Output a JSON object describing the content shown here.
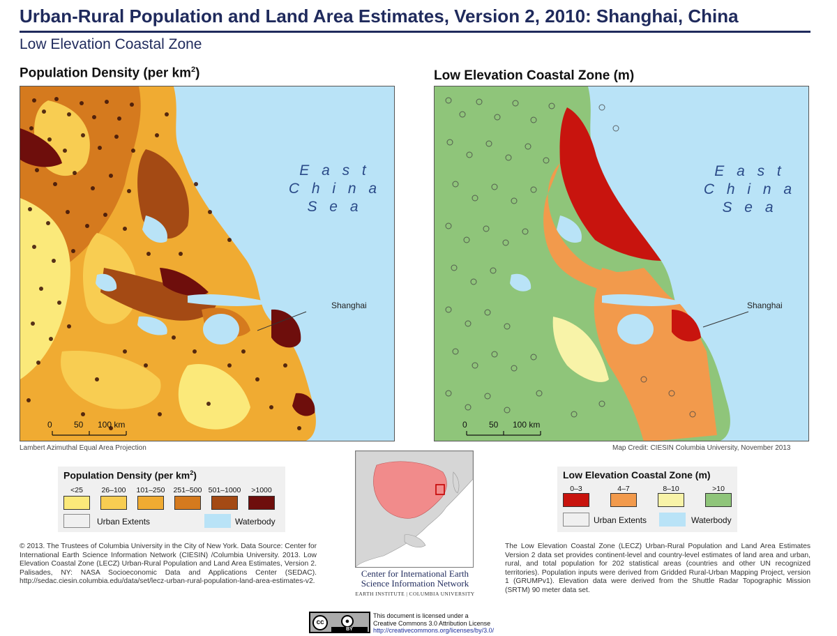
{
  "header": {
    "title": "Urban-Rural Population and Land Area Estimates, Version 2, 2010: Shanghai, China",
    "subtitle": "Low Elevation Coastal Zone"
  },
  "left_map": {
    "title": "Population Density (per km",
    "title_sup": "2",
    "title_close": ")",
    "sea_label": [
      "E a s t",
      "C h i n a",
      "S e a"
    ],
    "city_label": "Shanghai",
    "scale_ticks": [
      "0",
      "50",
      "100 km"
    ],
    "projection_note": "Lambert Azimuthal Equal Area Projection"
  },
  "right_map": {
    "title": "Low Elevation Coastal Zone (m)",
    "sea_label": [
      "E a s t",
      "C h i n a",
      "S e a"
    ],
    "city_label": "Shanghai",
    "scale_ticks": [
      "0",
      "50",
      "100 km"
    ],
    "credit": "Map Credit: CIESIN Columbia University, November 2013"
  },
  "legend_density": {
    "title": "Population Density (per km",
    "title_sup": "2",
    "title_close": ")",
    "classes": [
      {
        "label": "<25",
        "color": "#fbe97a"
      },
      {
        "label": "26–100",
        "color": "#f8cd52"
      },
      {
        "label": "101–250",
        "color": "#f0ab32"
      },
      {
        "label": "251–500",
        "color": "#d57a1e"
      },
      {
        "label": "501–1000",
        "color": "#a44a14"
      },
      {
        "label": ">1000",
        "color": "#6e0e0c"
      }
    ],
    "urban_label": "Urban Extents",
    "water_label": "Waterbody",
    "water_color": "#b9e3f7"
  },
  "legend_lecz": {
    "title": "Low Elevation Coastal Zone (m)",
    "classes": [
      {
        "label": "0–3",
        "color": "#c8140e"
      },
      {
        "label": "4–7",
        "color": "#f29a4c"
      },
      {
        "label": "8–10",
        "color": "#f8f3a8"
      },
      {
        "label": ">10",
        "color": "#8fc57a"
      }
    ],
    "urban_label": "Urban Extents",
    "water_label": "Waterbody"
  },
  "inset": {
    "org_line1": "Center for International Earth",
    "org_line2": "Science Information Network",
    "org_sub": "EARTH INSTITUTE | COLUMBIA UNIVERSITY"
  },
  "footer": {
    "left_text": "© 2013. The Trustees of Columbia University in the City of New York. Data Source: Center for International Earth Science Information Network (CIESIN) /Columbia University. 2013. Low Elevation Coastal Zone (LECZ) Urban-Rural Population and Land Area Estimates, Version 2. Palisades, NY: NASA Socioeconomic Data and Applications Center (SEDAC). http://sedac.ciesin.columbia.edu/data/set/lecz-urban-rural-population-land-area-estimates-v2.",
    "right_text": "The Low Elevation Coastal Zone (LECZ) Urban-Rural Population and Land Area Estimates Version 2 data set provides continent-level and country-level estimates of land area and urban, rural, and total population for 202 statistical areas (countries and other UN recognized territories). Population inputs were derived from Gridded Rural-Urban Mapping Project, version 1 (GRUMPv1). Elevation data were derived from the Shuttle Radar Topographic Mission (SRTM) 90 meter data set.",
    "license_line1": "This document is licensed under a",
    "license_line2": "Creative Commons 3.0 Attribution License",
    "license_link": "http://creativecommons.org/licenses/by/3.0/",
    "cc_text": "cc",
    "by_text": "BY"
  }
}
